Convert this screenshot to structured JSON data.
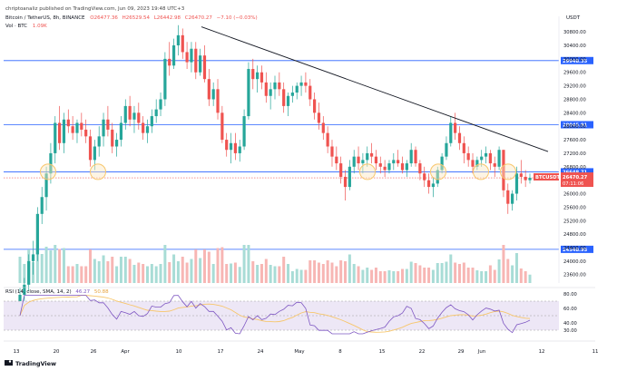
{
  "header": {
    "publisher": "chriptoanaliz published on TradingView.com, Jun 09, 2023 19:48 UTC+3",
    "symbol_line": "Bitcoin / TetherUS, 8h, BINANCE",
    "ohlc": {
      "o": "O26477.36",
      "h": "H26529.54",
      "l": "L26442.98",
      "c": "C26470.27",
      "chg": "−7.10 (−0.03%)"
    },
    "vol_label": "Vol · BTC",
    "vol_value": "1.09K",
    "currency": "USDT"
  },
  "footer": {
    "brand": "TradingView"
  },
  "colors": {
    "up": "#26a69a",
    "down": "#ef5350",
    "hline": "#2962ff",
    "trend": "#131722",
    "circle": "#f7c66b",
    "circle_fill": "#fbe7c0",
    "rsi_line": "#7e57c2",
    "rsi_ma": "#f7c66b",
    "rsi_band": "#ede7f6",
    "price_badge": "#ef5350"
  },
  "chart_data": {
    "type": "candlestick",
    "title": "Bitcoin / TetherUS, 8h, BINANCE",
    "y_axis": {
      "min": 23350,
      "max": 31100,
      "ticks": [
        23600,
        24000,
        24400,
        24800,
        25200,
        25600,
        26000,
        26400,
        26800,
        27200,
        27600,
        28000,
        28400,
        28800,
        29200,
        29600,
        30000,
        30400,
        30800
      ]
    },
    "x_axis": {
      "labels": [
        "13",
        "20",
        "26",
        "Apr",
        "10",
        "17",
        "24",
        "May",
        "8",
        "15",
        "22",
        "29",
        "Jun",
        "12",
        "11"
      ]
    },
    "horizontal_levels": [
      {
        "label": "29948.35",
        "value": 29948.35
      },
      {
        "label": "28045.91",
        "value": 28045.91
      },
      {
        "label": "26648.71",
        "value": 26648.71
      },
      {
        "label": "24348.95",
        "value": 24348.95
      }
    ],
    "current_price": {
      "label": "26470.27",
      "symbol": "BTCUSDT",
      "countdown": "07:11:06",
      "value": 26470.27
    },
    "trendline": {
      "from": {
        "x": "Apr 10",
        "y": 30950
      },
      "to": {
        "x": "Jun 12",
        "y": 27250
      }
    },
    "support_touches": [
      "Mar 20",
      "Mar 26",
      "May 10",
      "May 24",
      "Jun 1",
      "Jun 6"
    ],
    "candles": [
      [
        22500,
        23200,
        22300,
        23000
      ],
      [
        23000,
        23500,
        22800,
        23300
      ],
      [
        23300,
        24200,
        23100,
        24000
      ],
      [
        24000,
        24600,
        23600,
        24200
      ],
      [
        24200,
        25600,
        24000,
        25400
      ],
      [
        25400,
        26200,
        25100,
        25900
      ],
      [
        25900,
        26800,
        25500,
        26600
      ],
      [
        26600,
        27500,
        26300,
        27200
      ],
      [
        27200,
        28300,
        26900,
        28100
      ],
      [
        28100,
        28600,
        27300,
        27500
      ],
      [
        27500,
        28400,
        27200,
        28200
      ],
      [
        28200,
        28500,
        27800,
        28000
      ],
      [
        28000,
        28300,
        27600,
        27800
      ],
      [
        27800,
        28200,
        27500,
        28100
      ],
      [
        28100,
        28400,
        27700,
        27900
      ],
      [
        27900,
        28200,
        27500,
        27700
      ],
      [
        27700,
        27900,
        26800,
        27000
      ],
      [
        27000,
        27600,
        26700,
        27400
      ],
      [
        27400,
        28000,
        27100,
        27700
      ],
      [
        27700,
        28400,
        27400,
        28200
      ],
      [
        28200,
        28600,
        27700,
        27900
      ],
      [
        27900,
        28100,
        27200,
        27400
      ],
      [
        27400,
        27800,
        27100,
        27600
      ],
      [
        27600,
        28300,
        27400,
        28100
      ],
      [
        28100,
        28800,
        27900,
        28600
      ],
      [
        28600,
        28900,
        28000,
        28200
      ],
      [
        28200,
        28600,
        27800,
        28400
      ],
      [
        28400,
        28700,
        27900,
        28100
      ],
      [
        28100,
        28300,
        27600,
        27800
      ],
      [
        27800,
        28200,
        27500,
        28000
      ],
      [
        28000,
        28500,
        27800,
        28300
      ],
      [
        28300,
        28800,
        28100,
        28500
      ],
      [
        28500,
        29000,
        28300,
        28800
      ],
      [
        28800,
        30200,
        28600,
        30000
      ],
      [
        30000,
        30500,
        29500,
        29800
      ],
      [
        29800,
        30600,
        29700,
        30400
      ],
      [
        30400,
        31000,
        30100,
        30700
      ],
      [
        30700,
        30900,
        30000,
        30200
      ],
      [
        30200,
        30500,
        29700,
        29900
      ],
      [
        29900,
        30500,
        29600,
        30300
      ],
      [
        30300,
        30500,
        29400,
        29600
      ],
      [
        29600,
        30300,
        29500,
        30100
      ],
      [
        30100,
        30400,
        29300,
        29400
      ],
      [
        29400,
        29700,
        28600,
        28800
      ],
      [
        28800,
        29300,
        28600,
        29100
      ],
      [
        29100,
        29400,
        28200,
        28400
      ],
      [
        28400,
        28600,
        27500,
        27600
      ],
      [
        27600,
        27800,
        27100,
        27300
      ],
      [
        27300,
        27800,
        26900,
        27500
      ],
      [
        27500,
        27800,
        27000,
        27200
      ],
      [
        27200,
        27600,
        26950,
        27400
      ],
      [
        27400,
        28500,
        27300,
        28300
      ],
      [
        28300,
        29900,
        28200,
        29700
      ],
      [
        29700,
        30000,
        29100,
        29400
      ],
      [
        29400,
        29800,
        29000,
        29600
      ],
      [
        29600,
        29800,
        29100,
        29300
      ],
      [
        29300,
        29600,
        28700,
        28900
      ],
      [
        28900,
        29300,
        28500,
        29100
      ],
      [
        29100,
        29500,
        28800,
        29300
      ],
      [
        29300,
        29600,
        28900,
        29100
      ],
      [
        29100,
        29300,
        28400,
        28600
      ],
      [
        28600,
        29000,
        28300,
        28900
      ],
      [
        28900,
        29200,
        28700,
        29000
      ],
      [
        29000,
        29300,
        28800,
        29200
      ],
      [
        29200,
        29500,
        28900,
        29300
      ],
      [
        29300,
        29600,
        29000,
        29200
      ],
      [
        29200,
        29400,
        28600,
        28800
      ],
      [
        28800,
        29000,
        28200,
        28400
      ],
      [
        28400,
        28700,
        27900,
        28100
      ],
      [
        28100,
        28300,
        27600,
        27800
      ],
      [
        27800,
        28000,
        27200,
        27400
      ],
      [
        27400,
        27600,
        26800,
        27100
      ],
      [
        27100,
        27400,
        26700,
        26900
      ],
      [
        26900,
        27100,
        26300,
        26500
      ],
      [
        26500,
        26700,
        25800,
        26200
      ],
      [
        26200,
        27000,
        26100,
        26800
      ],
      [
        26800,
        27300,
        26600,
        27100
      ],
      [
        27100,
        27400,
        26700,
        26900
      ],
      [
        26900,
        27200,
        26600,
        27000
      ],
      [
        27000,
        27400,
        26800,
        27200
      ],
      [
        27200,
        27500,
        26900,
        27100
      ],
      [
        27100,
        27300,
        26700,
        26900
      ],
      [
        26900,
        27100,
        26600,
        26800
      ],
      [
        26800,
        27000,
        26500,
        26700
      ],
      [
        26700,
        27000,
        26600,
        26900
      ],
      [
        26900,
        27200,
        26700,
        27000
      ],
      [
        27000,
        27300,
        26800,
        26900
      ],
      [
        26900,
        27100,
        26600,
        26700
      ],
      [
        26700,
        27000,
        26500,
        26900
      ],
      [
        26900,
        27500,
        26800,
        27300
      ],
      [
        27300,
        27400,
        26800,
        26900
      ],
      [
        26900,
        27000,
        26400,
        26600
      ],
      [
        26600,
        26800,
        26200,
        26400
      ],
      [
        26400,
        26600,
        26000,
        26200
      ],
      [
        26200,
        26500,
        25900,
        26300
      ],
      [
        26300,
        26800,
        26200,
        26700
      ],
      [
        26700,
        27200,
        26600,
        27100
      ],
      [
        27100,
        27700,
        27000,
        27500
      ],
      [
        27500,
        28300,
        27400,
        28100
      ],
      [
        28100,
        28400,
        27600,
        27800
      ],
      [
        27800,
        28000,
        27300,
        27500
      ],
      [
        27500,
        27700,
        26900,
        27200
      ],
      [
        27200,
        27400,
        26800,
        27000
      ],
      [
        27000,
        27200,
        26600,
        26800
      ],
      [
        26800,
        27100,
        26700,
        27000
      ],
      [
        27000,
        27300,
        26800,
        27100
      ],
      [
        27100,
        27400,
        26900,
        27200
      ],
      [
        27200,
        27300,
        26700,
        26900
      ],
      [
        26900,
        27100,
        26500,
        26800
      ],
      [
        26800,
        27400,
        26700,
        27300
      ],
      [
        27300,
        27300,
        25900,
        26100
      ],
      [
        26100,
        26300,
        25400,
        25700
      ],
      [
        25700,
        26100,
        25500,
        26000
      ],
      [
        26000,
        26800,
        25800,
        26600
      ],
      [
        26600,
        27000,
        26300,
        26500
      ],
      [
        26500,
        26700,
        26200,
        26400
      ],
      [
        26400,
        26600,
        26300,
        26470
      ]
    ],
    "rsi": {
      "label": "RSI (14, close, SMA, 14, 2)",
      "value": "46.27",
      "ma_value": "50.88",
      "levels": [
        70,
        50,
        30
      ],
      "ticks": [
        30,
        40,
        60,
        80
      ],
      "ymin": 20,
      "ymax": 85
    }
  }
}
